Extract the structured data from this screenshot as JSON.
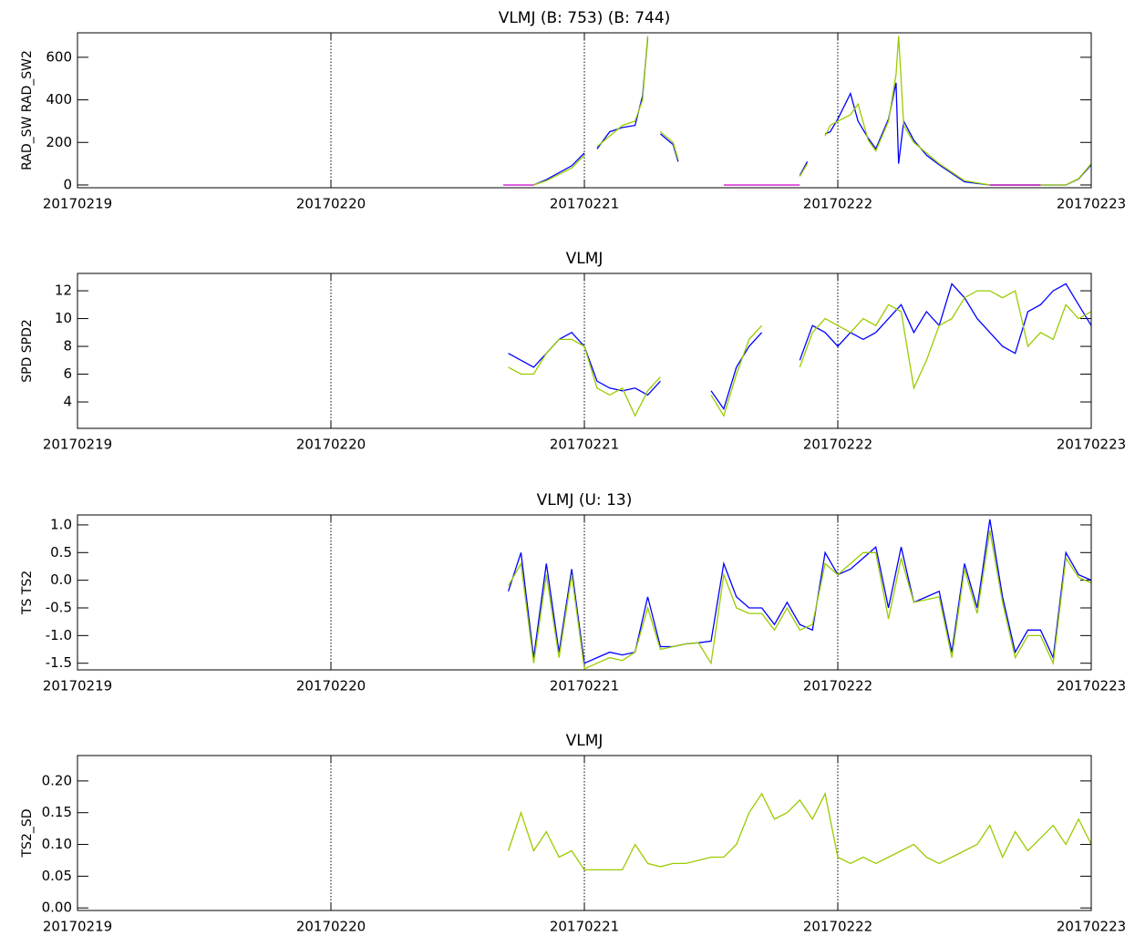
{
  "chart_data": [
    {
      "type": "line",
      "title": "VLMJ (B: 753) (B: 744)",
      "ylabel": "RAD_SW RAD_SW2",
      "xlim": [
        19,
        23
      ],
      "xticks": [
        {
          "value": 19,
          "label": "20170219"
        },
        {
          "value": 20,
          "label": "20170220"
        },
        {
          "value": 21,
          "label": "20170221"
        },
        {
          "value": 22,
          "label": "20170222"
        },
        {
          "value": 23,
          "label": "20170223"
        }
      ],
      "ylim": [
        -13,
        715
      ],
      "yticks": [
        0,
        200,
        400,
        600
      ],
      "grid": true,
      "x": [
        20.68,
        20.8,
        20.85,
        20.95,
        21.0,
        21.02,
        21.05,
        21.1,
        21.15,
        21.2,
        21.23,
        21.25,
        21.27,
        21.3,
        21.35,
        21.37,
        21.5,
        21.55,
        21.7,
        21.85,
        21.88,
        21.9,
        21.95,
        21.97,
        22.0,
        22.05,
        22.08,
        22.12,
        22.15,
        22.2,
        22.23,
        22.24,
        22.26,
        22.3,
        22.35,
        22.4,
        22.5,
        22.6,
        22.7,
        22.8,
        22.9,
        22.95,
        23.0
      ],
      "series": [
        {
          "color": "#0000ff",
          "values": [
            null,
            0,
            25,
            90,
            150,
            null,
            170,
            250,
            270,
            280,
            420,
            690,
            null,
            240,
            190,
            110,
            null,
            null,
            null,
            45,
            110,
            null,
            240,
            250,
            310,
            430,
            300,
            220,
            170,
            310,
            480,
            100,
            300,
            210,
            140,
            95,
            15,
            0,
            0,
            0,
            0,
            28,
            95
          ]
        },
        {
          "color": "#99cc00",
          "values": [
            null,
            0,
            20,
            80,
            140,
            null,
            180,
            230,
            280,
            300,
            400,
            700,
            null,
            250,
            200,
            120,
            null,
            null,
            null,
            40,
            100,
            null,
            230,
            280,
            300,
            330,
            380,
            210,
            160,
            300,
            520,
            700,
            280,
            200,
            150,
            100,
            20,
            0,
            0,
            0,
            0,
            30,
            100
          ]
        },
        {
          "color": "#cc00cc",
          "values": [
            0,
            0,
            null,
            null,
            null,
            null,
            null,
            null,
            null,
            null,
            null,
            null,
            null,
            null,
            null,
            null,
            null,
            0,
            0,
            0,
            null,
            null,
            null,
            null,
            null,
            null,
            null,
            null,
            null,
            null,
            null,
            null,
            null,
            null,
            null,
            null,
            null,
            0,
            0,
            0,
            null,
            null,
            null
          ]
        }
      ]
    },
    {
      "type": "line",
      "title": "VLMJ",
      "ylabel": "SPD SPD2",
      "xlim": [
        19,
        23
      ],
      "xticks": [
        {
          "value": 19,
          "label": "20170219"
        },
        {
          "value": 20,
          "label": "20170220"
        },
        {
          "value": 21,
          "label": "20170221"
        },
        {
          "value": 22,
          "label": "20170222"
        },
        {
          "value": 23,
          "label": "20170223"
        }
      ],
      "ylim": [
        2.1,
        13.25
      ],
      "yticks": [
        4,
        6,
        8,
        10,
        12
      ],
      "grid": true,
      "x": [
        20.7,
        20.75,
        20.8,
        20.85,
        20.9,
        20.95,
        21.0,
        21.05,
        21.1,
        21.15,
        21.2,
        21.25,
        21.3,
        21.35,
        21.4,
        21.45,
        21.5,
        21.55,
        21.6,
        21.65,
        21.7,
        21.75,
        21.8,
        21.85,
        21.9,
        21.95,
        22.0,
        22.05,
        22.1,
        22.15,
        22.2,
        22.25,
        22.3,
        22.35,
        22.4,
        22.45,
        22.5,
        22.55,
        22.6,
        22.65,
        22.7,
        22.75,
        22.8,
        22.85,
        22.9,
        22.95,
        23.0
      ],
      "series": [
        {
          "color": "#0000ff",
          "values": [
            7.5,
            7,
            6.5,
            7.5,
            8.5,
            9,
            8,
            5.5,
            5,
            4.8,
            5,
            4.5,
            5.5,
            null,
            null,
            null,
            4.8,
            3.5,
            6.5,
            8,
            9,
            null,
            null,
            7,
            9.5,
            9,
            8,
            9,
            8.5,
            9,
            10,
            11,
            9,
            10.5,
            9.5,
            12.5,
            11.5,
            10,
            9,
            8,
            7.5,
            10.5,
            11,
            12,
            12.5,
            11,
            9.5
          ]
        },
        {
          "color": "#99cc00",
          "values": [
            6.5,
            6,
            6,
            7.5,
            8.5,
            8.5,
            8,
            5,
            4.5,
            5,
            3,
            4.8,
            5.8,
            null,
            null,
            null,
            4.5,
            3,
            6,
            8.5,
            9.5,
            null,
            null,
            6.5,
            9,
            10,
            9.5,
            9,
            10,
            9.5,
            11,
            10.5,
            5,
            7,
            9.5,
            10,
            11.5,
            12,
            12,
            11.5,
            12,
            8,
            9,
            8.5,
            11,
            10,
            10.5
          ]
        }
      ]
    },
    {
      "type": "line",
      "title": "VLMJ (U: 13)",
      "ylabel": "TS TS2",
      "xlim": [
        19,
        23
      ],
      "xticks": [
        {
          "value": 19,
          "label": "20170219"
        },
        {
          "value": 20,
          "label": "20170220"
        },
        {
          "value": 21,
          "label": "20170221"
        },
        {
          "value": 22,
          "label": "20170222"
        },
        {
          "value": 23,
          "label": "20170223"
        }
      ],
      "ylim": [
        -1.62,
        1.18
      ],
      "yticks": [
        {
          "value": 1,
          "label": "1.0"
        },
        0.5,
        {
          "value": 0,
          "label": "0.0"
        },
        -0.5,
        {
          "value": -1,
          "label": "-1.0"
        },
        -1.5
      ],
      "grid": true,
      "x": [
        20.7,
        20.75,
        20.8,
        20.85,
        20.9,
        20.95,
        21.0,
        21.05,
        21.1,
        21.15,
        21.2,
        21.25,
        21.3,
        21.35,
        21.4,
        21.45,
        21.5,
        21.55,
        21.6,
        21.65,
        21.7,
        21.75,
        21.8,
        21.85,
        21.9,
        21.95,
        22.0,
        22.05,
        22.1,
        22.15,
        22.2,
        22.25,
        22.3,
        22.35,
        22.4,
        22.45,
        22.5,
        22.55,
        22.6,
        22.65,
        22.7,
        22.75,
        22.8,
        22.85,
        22.9,
        22.95,
        23.0
      ],
      "series": [
        {
          "color": "#0000ff",
          "values": [
            -0.2,
            0.5,
            -1.4,
            0.3,
            -1.3,
            0.2,
            -1.5,
            -1.4,
            -1.3,
            -1.35,
            -1.3,
            -0.3,
            -1.2,
            -1.2,
            -1.15,
            -1.13,
            -1.1,
            0.3,
            -0.3,
            -0.5,
            -0.5,
            -0.8,
            -0.4,
            -0.8,
            -0.9,
            0.5,
            0.1,
            0.2,
            0.4,
            0.6,
            -0.5,
            0.6,
            -0.4,
            -0.3,
            -0.2,
            -1.3,
            0.3,
            -0.5,
            1.1,
            -0.3,
            -1.3,
            -0.9,
            -0.9,
            -1.4,
            0.5,
            0.1,
            0.0
          ]
        },
        {
          "color": "#99cc00",
          "values": [
            -0.1,
            0.3,
            -1.5,
            0.1,
            -1.4,
            0.1,
            -1.6,
            -1.5,
            -1.4,
            -1.45,
            -1.3,
            -0.5,
            -1.25,
            -1.2,
            -1.15,
            -1.13,
            -1.5,
            0.1,
            -0.5,
            -0.6,
            -0.6,
            -0.9,
            -0.5,
            -0.9,
            -0.8,
            0.3,
            0.1,
            0.3,
            0.5,
            0.5,
            -0.7,
            0.4,
            -0.4,
            -0.35,
            -0.3,
            -1.4,
            0.2,
            -0.6,
            0.9,
            -0.4,
            -1.4,
            -1.0,
            -1.0,
            -1.5,
            0.4,
            0.05,
            -0.05
          ]
        }
      ]
    },
    {
      "type": "line",
      "title": "VLMJ",
      "ylabel": "TS2_SD",
      "xlim": [
        19,
        23
      ],
      "xticks": [
        {
          "value": 19,
          "label": "20170219"
        },
        {
          "value": 20,
          "label": "20170220"
        },
        {
          "value": 21,
          "label": "20170221"
        },
        {
          "value": 22,
          "label": "20170222"
        },
        {
          "value": 23,
          "label": "20170223"
        }
      ],
      "ylim": [
        -0.004,
        0.24
      ],
      "yticks": [
        {
          "value": 0,
          "label": "0.00"
        },
        0.05,
        {
          "value": 0.1,
          "label": "0.10"
        },
        0.15,
        {
          "value": 0.2,
          "label": "0.20"
        }
      ],
      "grid": true,
      "x": [
        20.7,
        20.75,
        20.8,
        20.85,
        20.9,
        20.95,
        21.0,
        21.05,
        21.1,
        21.15,
        21.2,
        21.25,
        21.3,
        21.35,
        21.4,
        21.45,
        21.5,
        21.55,
        21.6,
        21.65,
        21.7,
        21.75,
        21.8,
        21.85,
        21.9,
        21.95,
        22.0,
        22.05,
        22.1,
        22.15,
        22.2,
        22.25,
        22.3,
        22.35,
        22.4,
        22.45,
        22.5,
        22.55,
        22.6,
        22.65,
        22.7,
        22.75,
        22.8,
        22.85,
        22.9,
        22.95,
        23.0
      ],
      "series": [
        {
          "color": "#99cc00",
          "values": [
            0.09,
            0.15,
            0.09,
            0.12,
            0.08,
            0.09,
            0.06,
            0.06,
            0.06,
            0.06,
            0.1,
            0.07,
            0.065,
            0.07,
            0.07,
            0.075,
            0.08,
            0.08,
            0.1,
            0.15,
            0.18,
            0.14,
            0.15,
            0.17,
            0.14,
            0.18,
            0.08,
            0.07,
            0.08,
            0.07,
            0.08,
            0.09,
            0.1,
            0.08,
            0.07,
            0.08,
            0.09,
            0.1,
            0.13,
            0.08,
            0.12,
            0.09,
            0.11,
            0.13,
            0.1,
            0.14,
            0.1
          ]
        }
      ]
    }
  ]
}
